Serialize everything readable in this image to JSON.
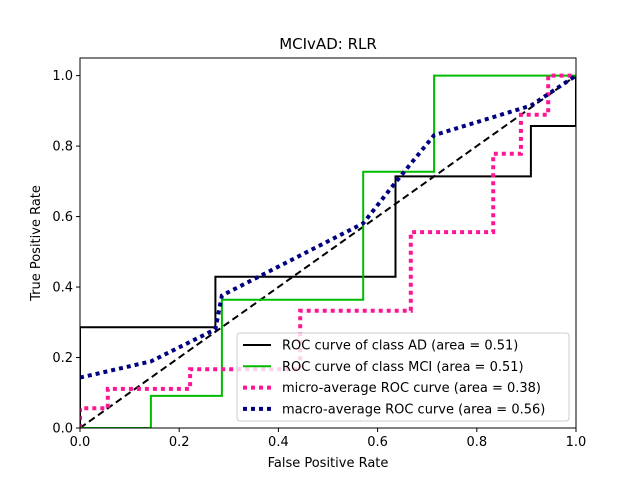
{
  "chart_data": {
    "type": "line",
    "title": "MCIvAD: RLR",
    "xlabel": "False Positive Rate",
    "ylabel": "True Positive Rate",
    "xlim": [
      0.0,
      1.0
    ],
    "ylim": [
      0.0,
      1.05
    ],
    "xticks": [
      "0.0",
      "0.2",
      "0.4",
      "0.6",
      "0.8",
      "1.0"
    ],
    "yticks": [
      "0.0",
      "0.2",
      "0.4",
      "0.6",
      "0.8",
      "1.0"
    ],
    "grid": false,
    "legend_position": "lower-right",
    "series": [
      {
        "name": "ROC curve of class  AD (area = 0.51)",
        "color": "#000000",
        "style": "solid",
        "x": [
          0.0,
          0.0,
          0.273,
          0.273,
          0.636,
          0.636,
          0.909,
          0.909,
          1.0,
          1.0
        ],
        "y": [
          0.0,
          0.286,
          0.286,
          0.429,
          0.429,
          0.714,
          0.714,
          0.857,
          0.857,
          1.0
        ]
      },
      {
        "name": "ROC curve of class  MCI (area = 0.51)",
        "color": "#00bb00",
        "style": "solid",
        "x": [
          0.0,
          0.143,
          0.143,
          0.286,
          0.286,
          0.571,
          0.571,
          0.714,
          0.714,
          1.0
        ],
        "y": [
          0.0,
          0.0,
          0.091,
          0.091,
          0.364,
          0.364,
          0.727,
          0.727,
          1.0,
          1.0
        ]
      },
      {
        "name": "micro-average ROC curve (area = 0.38)",
        "color": "#ff1493",
        "style": "dotted",
        "x": [
          0.0,
          0.0,
          0.056,
          0.056,
          0.111,
          0.111,
          0.222,
          0.222,
          0.444,
          0.444,
          0.667,
          0.667,
          0.833,
          0.833,
          0.889,
          0.889,
          0.944,
          0.944,
          1.0
        ],
        "y": [
          0.0,
          0.056,
          0.056,
          0.111,
          0.111,
          0.111,
          0.111,
          0.167,
          0.167,
          0.333,
          0.333,
          0.556,
          0.556,
          0.778,
          0.778,
          0.889,
          0.889,
          1.0,
          1.0
        ]
      },
      {
        "name": "macro-average ROC curve (area = 0.56)",
        "color": "#000080",
        "style": "dotted",
        "x": [
          0.0,
          0.143,
          0.273,
          0.286,
          0.571,
          0.636,
          0.714,
          0.909,
          1.0
        ],
        "y": [
          0.143,
          0.189,
          0.28,
          0.376,
          0.581,
          0.697,
          0.831,
          0.915,
          1.0
        ]
      },
      {
        "name": "",
        "color": "#000000",
        "style": "dashed",
        "x": [
          0.0,
          1.0
        ],
        "y": [
          0.0,
          1.0
        ]
      }
    ]
  }
}
